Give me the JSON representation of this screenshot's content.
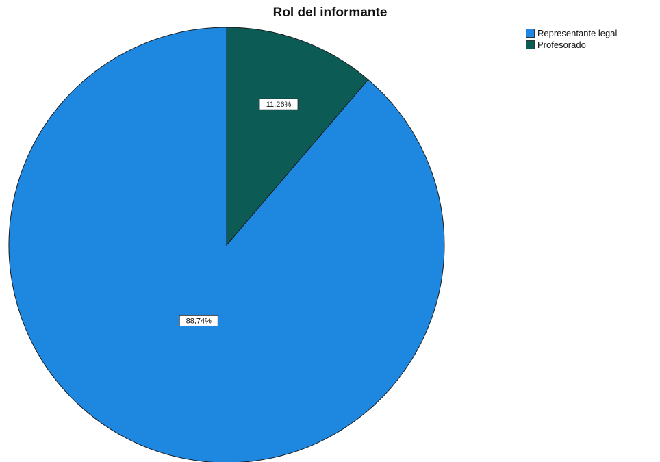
{
  "chart_data": {
    "type": "pie",
    "title": "Rol del informante",
    "slices": [
      {
        "label": "Representante legal",
        "value": 88.74,
        "display": "88,74%",
        "color": "#1e88e0"
      },
      {
        "label": "Profesorado",
        "value": 11.26,
        "display": "11,26%",
        "color": "#0d5b55"
      }
    ],
    "legend_position": "top-right"
  }
}
